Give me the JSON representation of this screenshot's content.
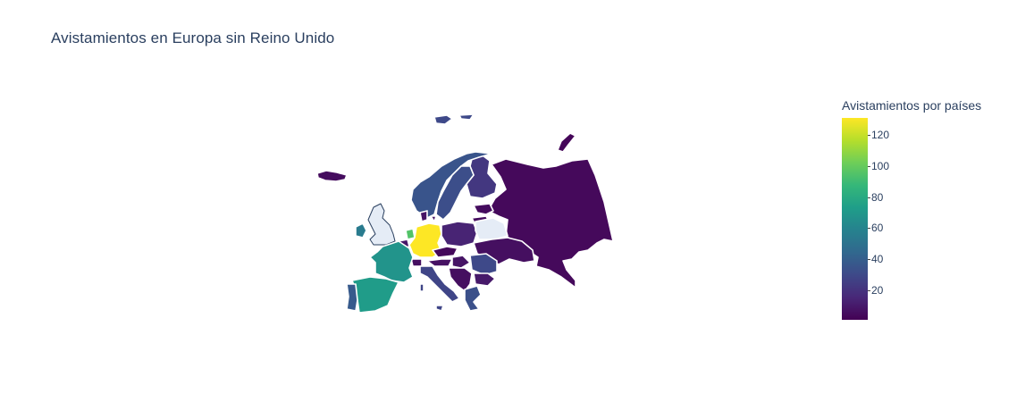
{
  "title": "Avistamientos en Europa sin Reino Unido",
  "colorbar": {
    "title": "Avistamientos por países",
    "colorscale": "Viridis",
    "stops": [
      "#440154",
      "#482878",
      "#3e4989",
      "#31688e",
      "#26828e",
      "#1f9e89",
      "#35b779",
      "#6ece58",
      "#b5de2b",
      "#fde725"
    ],
    "range": [
      1,
      131
    ],
    "ticks": [
      {
        "label": "120",
        "value": 120
      },
      {
        "label": "100",
        "value": 100
      },
      {
        "label": "80",
        "value": 80
      },
      {
        "label": "60",
        "value": 60
      },
      {
        "label": "40",
        "value": 40
      },
      {
        "label": "20",
        "value": 20
      }
    ]
  },
  "no_data_color": "#e5ecf6",
  "countries": [
    {
      "name": "Germany",
      "value": 131
    },
    {
      "name": "Netherlands",
      "value": 95
    },
    {
      "name": "Spain",
      "value": 72
    },
    {
      "name": "France",
      "value": 68
    },
    {
      "name": "Ireland",
      "value": 55
    },
    {
      "name": "Portugal",
      "value": 38
    },
    {
      "name": "Norway",
      "value": 35
    },
    {
      "name": "Sweden",
      "value": 32
    },
    {
      "name": "Finland",
      "value": 22
    },
    {
      "name": "Italy",
      "value": 28
    },
    {
      "name": "Romania",
      "value": 30
    },
    {
      "name": "Greece",
      "value": 33
    },
    {
      "name": "Poland",
      "value": 14
    },
    {
      "name": "Ukraine",
      "value": 6
    },
    {
      "name": "Russia",
      "value": 4
    },
    {
      "name": "Iceland",
      "value": 5
    },
    {
      "name": "Bulgaria",
      "value": 10
    },
    {
      "name": "Denmark",
      "value": 8
    },
    {
      "name": "Czechia",
      "value": 4
    },
    {
      "name": "Hungary",
      "value": 8
    },
    {
      "name": "Baltics",
      "value": 5
    },
    {
      "name": "Austria",
      "value": 7
    },
    {
      "name": "Switzerland",
      "value": 6
    },
    {
      "name": "Belgium",
      "value": 9
    },
    {
      "name": "Balkans",
      "value": 6
    },
    {
      "name": "Svalbard",
      "value": 30
    },
    {
      "name": "Novaya Zemlya",
      "value": 3
    }
  ],
  "no_data": [
    "United Kingdom",
    "Belarus"
  ]
}
